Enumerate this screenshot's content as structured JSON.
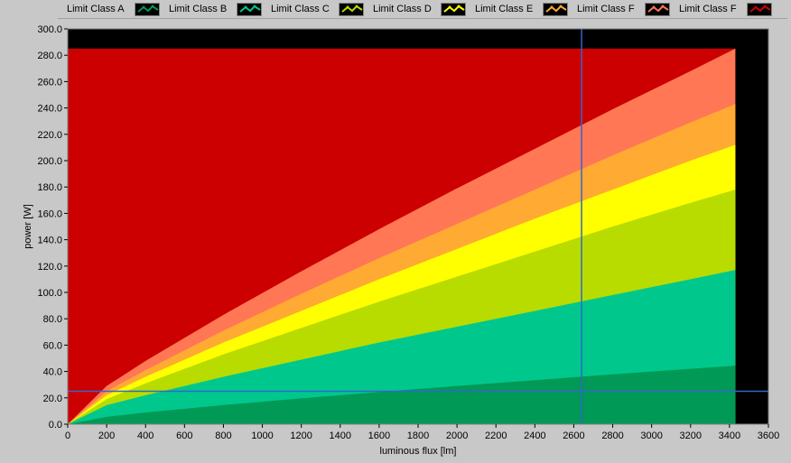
{
  "chart_data": {
    "type": "area",
    "xlabel": "luminous flux [lm]",
    "ylabel": "power [W]",
    "xlim": [
      0,
      3600
    ],
    "ylim": [
      0,
      300
    ],
    "x_ticks": [
      0,
      200,
      400,
      600,
      800,
      1000,
      1200,
      1400,
      1600,
      1800,
      2000,
      2200,
      2400,
      2600,
      2800,
      3000,
      3200,
      3400,
      3600
    ],
    "y_ticks": [
      "0.0",
      "20.0",
      "40.0",
      "60.0",
      "80.0",
      "100.0",
      "120.0",
      "140.0",
      "160.0",
      "180.0",
      "200.0",
      "220.0",
      "240.0",
      "260.0",
      "280.0",
      "300.0"
    ],
    "x_max_data": 3430,
    "background_color": "#000000",
    "series": [
      {
        "name": "Limit Class A",
        "color": "#009955",
        "x": [
          0,
          200,
          400,
          800,
          1200,
          1600,
          2000,
          2400,
          2800,
          3200,
          3430
        ],
        "y": [
          0,
          5.6,
          8.9,
          14.5,
          19.6,
          24.4,
          29,
          33.4,
          37.8,
          42,
          44.4
        ]
      },
      {
        "name": "Limit Class B",
        "color": "#00c88c",
        "x": [
          0,
          200,
          400,
          800,
          1200,
          1600,
          2000,
          2400,
          2800,
          3200,
          3430
        ],
        "y": [
          0,
          14.5,
          22,
          36,
          49,
          62,
          74,
          86,
          98,
          110,
          117
        ]
      },
      {
        "name": "Limit Class C",
        "color": "#b8dc00",
        "x": [
          0,
          200,
          400,
          800,
          1200,
          1600,
          2000,
          2400,
          2800,
          3200,
          3430
        ],
        "y": [
          0,
          19,
          31,
          53,
          73,
          93,
          112,
          131,
          150,
          168,
          178
        ]
      },
      {
        "name": "Limit Class D",
        "color": "#ffff00",
        "x": [
          0,
          200,
          400,
          800,
          1200,
          1600,
          2000,
          2400,
          2800,
          3200,
          3430
        ],
        "y": [
          0,
          22,
          36,
          62,
          86,
          110,
          133,
          156,
          178,
          200,
          212
        ]
      },
      {
        "name": "Limit Class E",
        "color": "#ffaa33",
        "x": [
          0,
          200,
          400,
          800,
          1200,
          1600,
          2000,
          2400,
          2800,
          3200,
          3430
        ],
        "y": [
          0,
          25,
          41,
          71,
          99,
          126,
          152,
          178,
          204,
          229,
          243
        ]
      },
      {
        "name": "Limit Class F",
        "color": "#ff7755",
        "x": [
          0,
          200,
          400,
          800,
          1200,
          1600,
          2000,
          2400,
          2800,
          3200,
          3430
        ],
        "y": [
          0,
          29,
          48,
          83,
          116,
          148,
          179,
          209,
          239,
          268,
          285
        ]
      },
      {
        "name": "Limit Class F",
        "color": "#cc0000",
        "x": [
          0,
          3430
        ],
        "y": [
          285,
          285
        ]
      }
    ],
    "cursors": {
      "x": 2640,
      "y": 25,
      "color": "#3366cc"
    }
  }
}
